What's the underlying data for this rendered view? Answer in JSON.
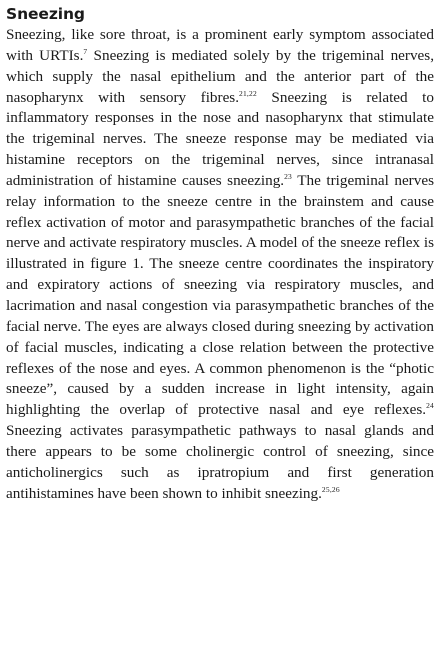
{
  "section": {
    "heading": "Sneezing",
    "paragraph": [
      {
        "t": "text",
        "v": "Sneezing, like sore throat, is a prominent early symptom associated with URTIs."
      },
      {
        "t": "ref",
        "v": "7"
      },
      {
        "t": "text",
        "v": " Sneezing is mediated solely by the trigeminal nerves, which supply the nasal epithelium and the anterior part of the nasopharynx with sensory fibres."
      },
      {
        "t": "ref",
        "v": "21,22"
      },
      {
        "t": "text",
        "v": " Sneezing is related to inflammatory responses in the nose and nasopharynx that stimulate the trigeminal nerves. The sneeze response may be mediated via histamine receptors on the trigeminal nerves, since intranasal administration of histamine causes sneezing."
      },
      {
        "t": "ref",
        "v": "23"
      },
      {
        "t": "text",
        "v": " The trigeminal nerves relay information to the sneeze centre in the brainstem and cause reflex activation of motor and parasympathetic branches of the facial nerve and activate respiratory muscles. A model of the sneeze reflex is illustrated in figure 1. The sneeze centre coordinates the inspiratory and expiratory actions of sneezing via respiratory muscles, and lacrimation and nasal congestion via parasympathetic branches of the facial nerve. The eyes are always closed during sneezing by activation of facial muscles, indicating a close relation between the protective reflexes of the nose and eyes. A common phenomenon is the “photic sneeze”, caused by a sudden increase in light intensity, again highlighting the overlap of protective nasal and eye reflexes."
      },
      {
        "t": "ref",
        "v": "24"
      },
      {
        "t": "text",
        "v": " Sneezing activates parasympathetic pathways to nasal glands and there appears to be some cholinergic control of sneezing, since anticholinergics such as ipratropium and first generation antihistamines have been shown to inhibit sneezing."
      },
      {
        "t": "ref",
        "v": "25,26"
      }
    ]
  }
}
